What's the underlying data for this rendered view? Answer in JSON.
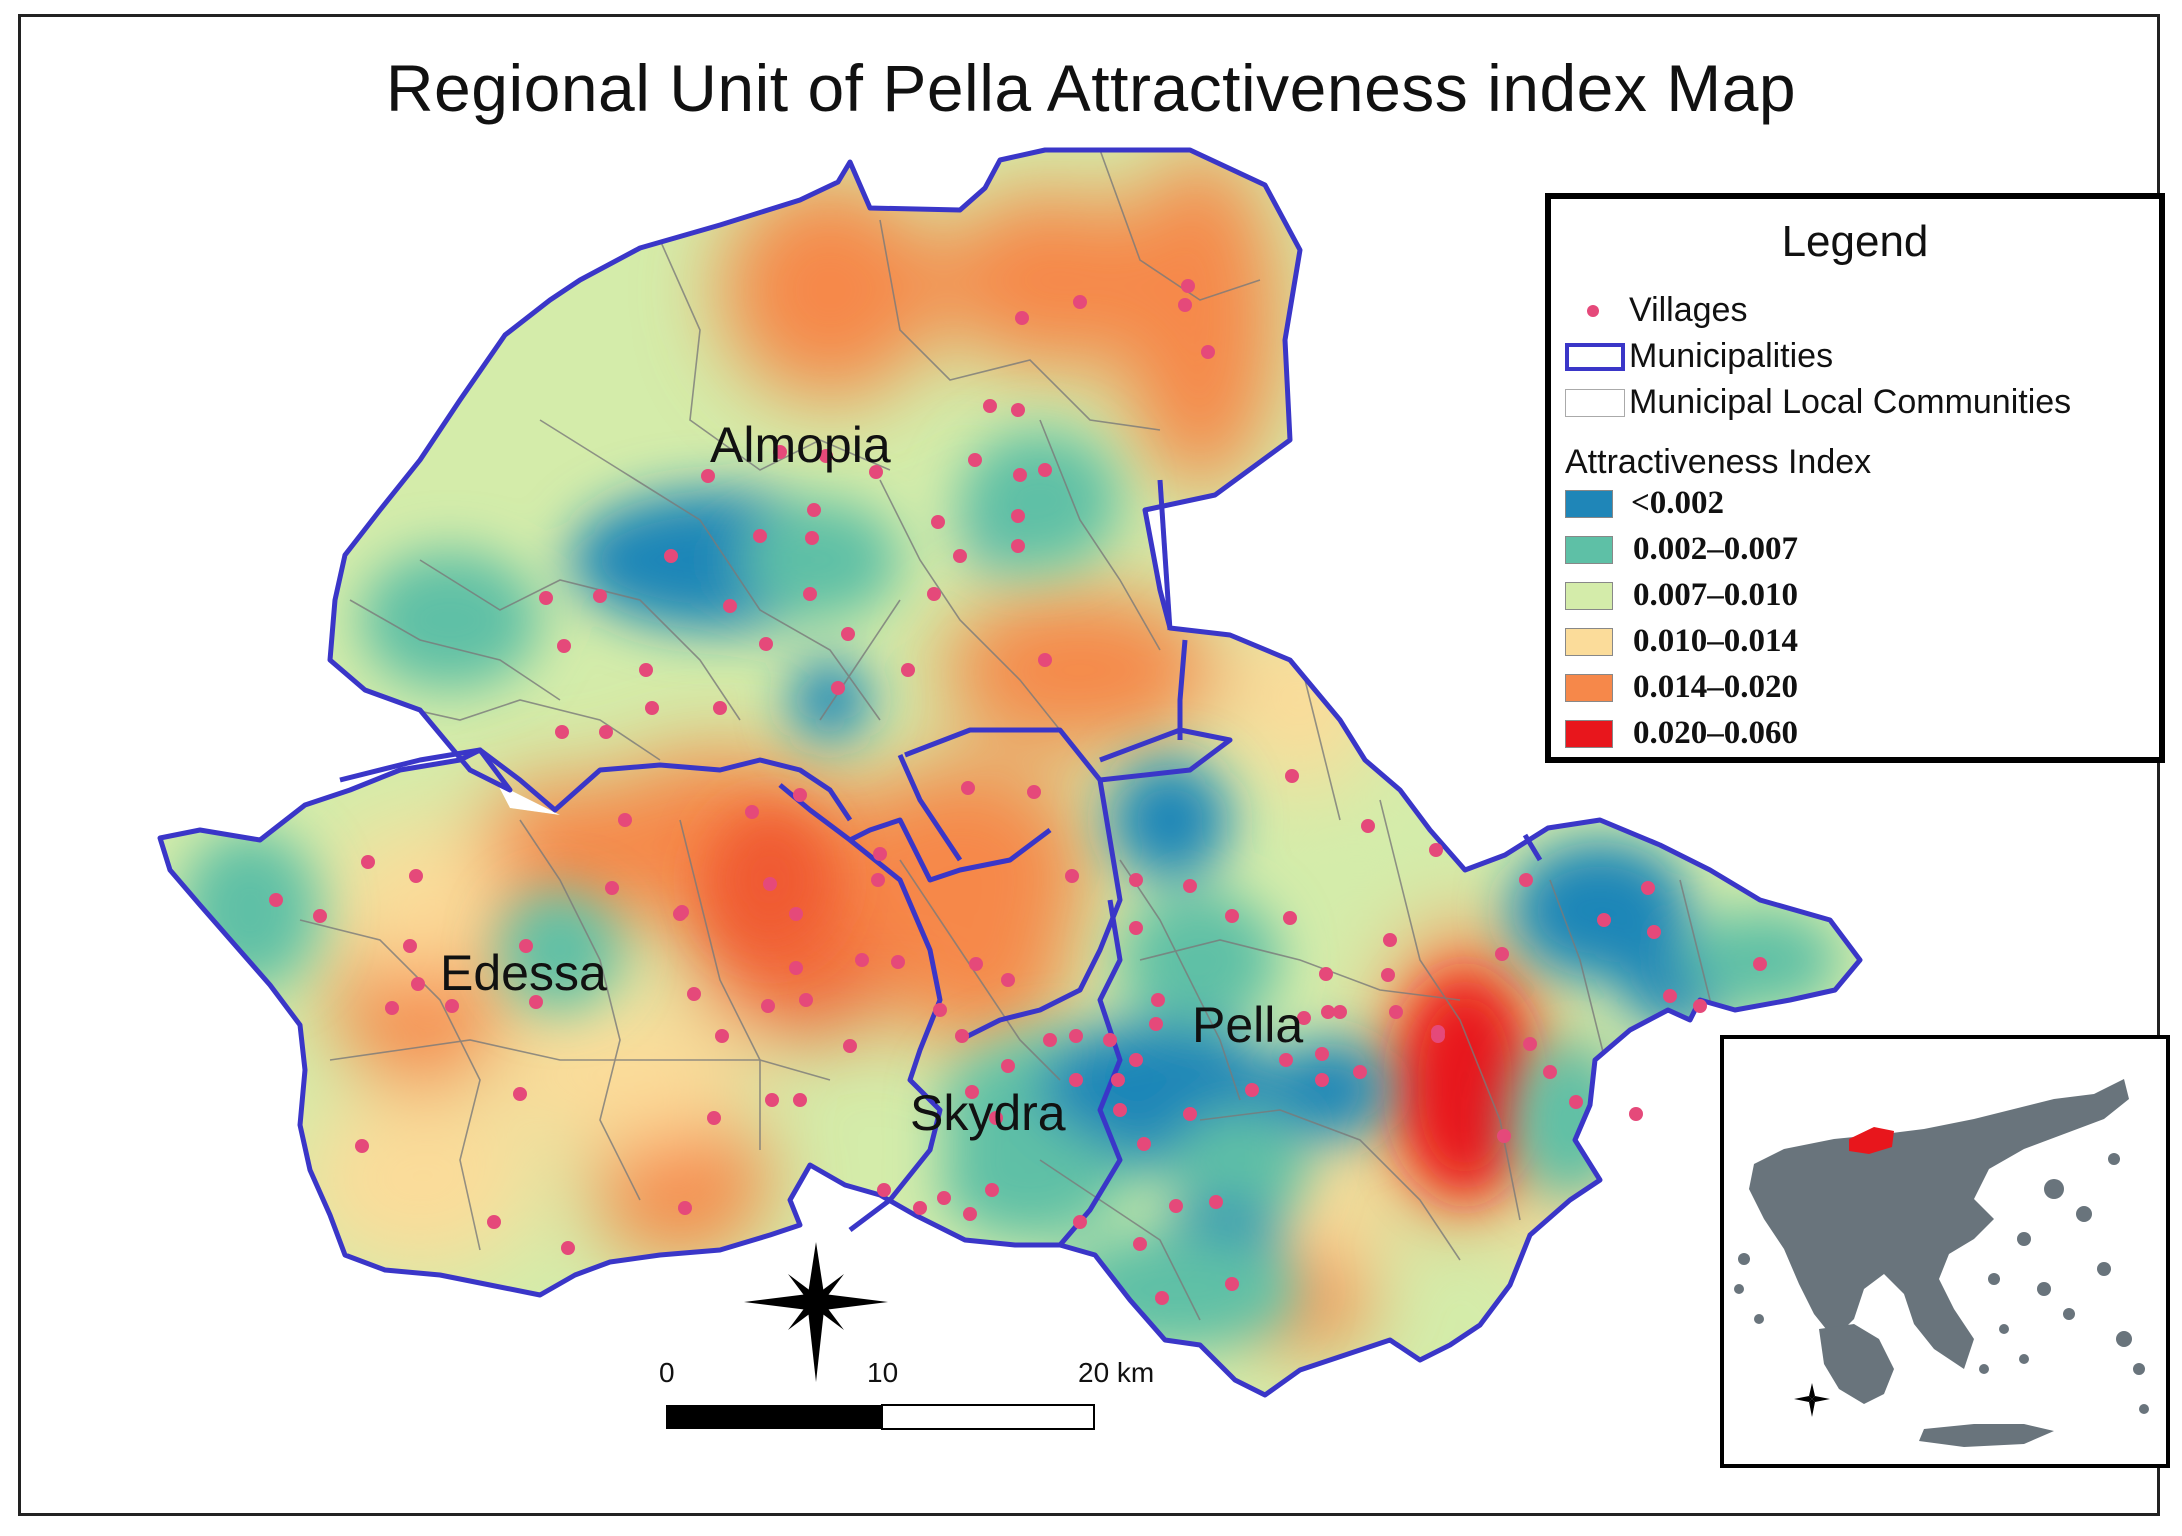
{
  "title": "Regional Unit of Pella Attractiveness index Map",
  "municipalities": {
    "almopia": "Almopia",
    "edessa": "Edessa",
    "pella": "Pella",
    "skydra": "Skydra"
  },
  "legend": {
    "title": "Legend",
    "villages": "Villages",
    "municipalities": "Municipalities",
    "communities": "Municipal Local Communities",
    "index_title": "Attractiveness Index",
    "classes": [
      {
        "label": "<0.002",
        "color": "#1f86b8"
      },
      {
        "label": "0.002–0.007",
        "color": "#5ec0a6"
      },
      {
        "label": "0.007–0.010",
        "color": "#d4ecaa"
      },
      {
        "label": "0.010–0.014",
        "color": "#fbdc9a"
      },
      {
        "label": "0.014–0.020",
        "color": "#f6884a"
      },
      {
        "label": "0.020–0.060",
        "color": "#e8161c"
      }
    ]
  },
  "scale_bar": {
    "ticks": [
      "0",
      "10",
      "20 km"
    ]
  },
  "colors": {
    "municipality_border": "#3a36c8",
    "community_border": "#7a7a7a",
    "village_point": "#e5497a",
    "greece_fill": "#69747c",
    "pella_highlight": "#e8161c"
  },
  "icons": {
    "north_arrow": "compass-rose-icon",
    "inset_north": "compass-rose-icon"
  }
}
